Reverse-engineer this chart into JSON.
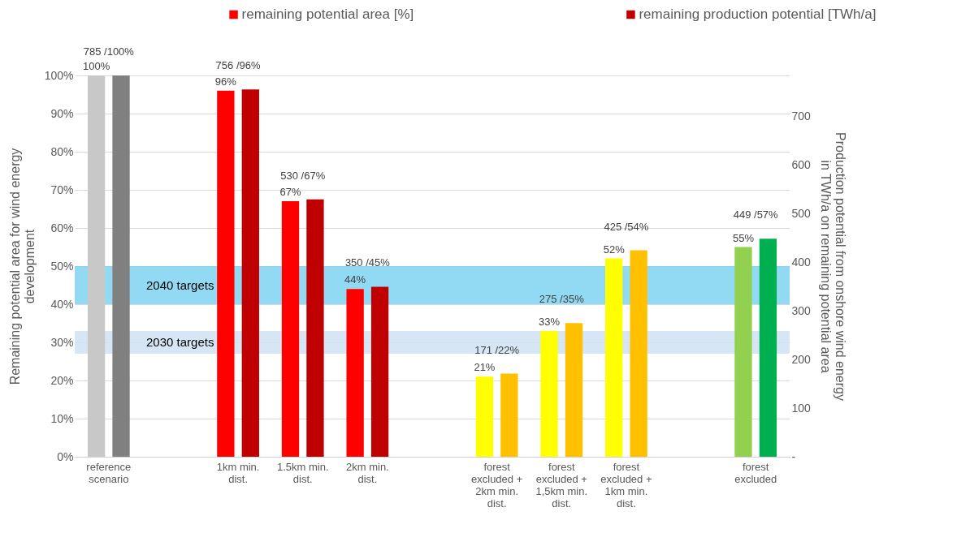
{
  "chart_data": {
    "type": "bar",
    "categories": [
      "reference scenario",
      null,
      "1km min. dist.",
      "1.5km min. dist.",
      "2km min. dist.",
      null,
      "forest excluded + 2km min. dist.",
      "forest excluded + 1,5km min. dist.",
      "forest excluded + 1km min. dist.",
      null,
      "forest excluded"
    ],
    "series": [
      {
        "name": "remaining potential area [%]",
        "color": "#ff0000",
        "colors": [
          "#c8c8c8",
          null,
          "#ff0000",
          "#ff0000",
          "#ff0000",
          null,
          "#ffff00",
          "#ffff00",
          "#ffff00",
          null,
          "#92d050"
        ],
        "values": [
          100,
          null,
          96,
          67,
          44,
          null,
          21,
          33,
          52,
          null,
          55
        ],
        "value_labels": [
          "100%",
          null,
          "96%",
          "67%",
          "44%",
          null,
          "21%",
          "33%",
          "52%",
          null,
          "55%"
        ]
      },
      {
        "name": "remaining production potential [TWh/a]",
        "color": "#c00000",
        "axis": "y2",
        "colors": [
          "#808080",
          null,
          "#c00000",
          "#c00000",
          "#c00000",
          null,
          "#ffc000",
          "#ffc000",
          "#ffc000",
          null,
          "#00b050"
        ],
        "values": [
          785,
          null,
          756,
          530,
          350,
          null,
          171,
          275,
          425,
          null,
          449
        ],
        "value_labels": [
          "785   /100%",
          null,
          "756   /96%",
          "530   /67%",
          "350   /45%",
          null,
          "171   /22%",
          "275   /35%",
          "425   /54%",
          null,
          "449   /57%"
        ]
      }
    ],
    "ylabel": "Remaining potential area for wind energy development",
    "y2label": "Production potential from onshore wind energy  in TWh/a on remaining potential area",
    "ylim": [
      0,
      100
    ],
    "yticks": [
      {
        "value": 0,
        "label": "0%"
      },
      {
        "value": 10,
        "label": "10%"
      },
      {
        "value": 20,
        "label": "20%"
      },
      {
        "value": 30,
        "label": "30%"
      },
      {
        "value": 40,
        "label": "40%"
      },
      {
        "value": 50,
        "label": "50%"
      },
      {
        "value": 60,
        "label": "60%"
      },
      {
        "value": 70,
        "label": "70%"
      },
      {
        "value": 80,
        "label": "80%"
      },
      {
        "value": 90,
        "label": "90%"
      },
      {
        "value": 100,
        "label": "100%"
      }
    ],
    "y2lim": [
      0,
      785
    ],
    "y2ticks": [
      {
        "value": 0,
        "label": "-"
      },
      100,
      200,
      300,
      400,
      500,
      600,
      700
    ],
    "bands": [
      {
        "axis": "y",
        "from": 40,
        "to": 50,
        "label": "2040 targets",
        "color": "#7fd3f2"
      },
      {
        "axis": "y",
        "from": 27,
        "to": 33,
        "label": "2030 targets",
        "color": "#cfe2f3"
      }
    ],
    "grid": "y",
    "legend": "top"
  }
}
